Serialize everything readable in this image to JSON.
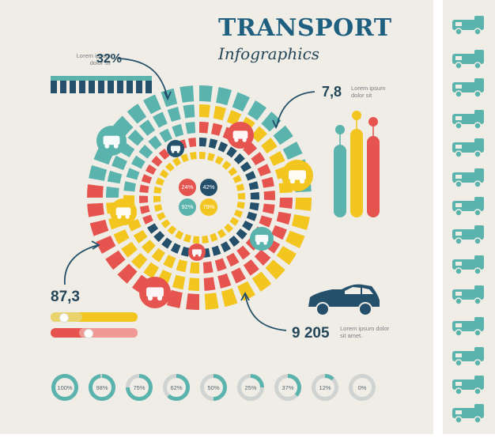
{
  "header": {
    "title": "TRANSPORT",
    "subtitle": "Infographics"
  },
  "lorem_short": "Lorem ipsum dolor sit",
  "lorem_long": "Lorem ipsum dolor sit amet.",
  "stats": {
    "top_left": "32%",
    "top_right": "7,8",
    "left": "87,3",
    "bottom_right": "9 205"
  },
  "inner_percents": [
    "24%",
    "42%",
    "92%",
    "79%"
  ],
  "bars": {
    "blue_segments": 11
  },
  "percent_circles": [
    "100%",
    "98%",
    "75%",
    "62%",
    "50%",
    "25%",
    "37%",
    "12%",
    "0%"
  ],
  "colors": {
    "teal": "#5bb3ad",
    "yellow": "#f2c51f",
    "red": "#e6544f",
    "navy": "#24506b",
    "bg": "#efede5"
  },
  "icons": [
    "train-icon",
    "forklift-icon",
    "motorcycle-icon",
    "tram-icon",
    "tractor-icon",
    "scooter-icon",
    "car-icon"
  ],
  "sidebar_icons": [
    "concrete-truck-icon",
    "camper-icon",
    "car-carrier-icon",
    "van-icon",
    "bus-icon",
    "crane-truck-icon",
    "hatchback-icon",
    "mixer-truck-icon",
    "box-truck-icon",
    "dump-truck-icon",
    "pickup-icon",
    "sedan-icon",
    "lorry-icon",
    "delivery-truck-icon"
  ]
}
